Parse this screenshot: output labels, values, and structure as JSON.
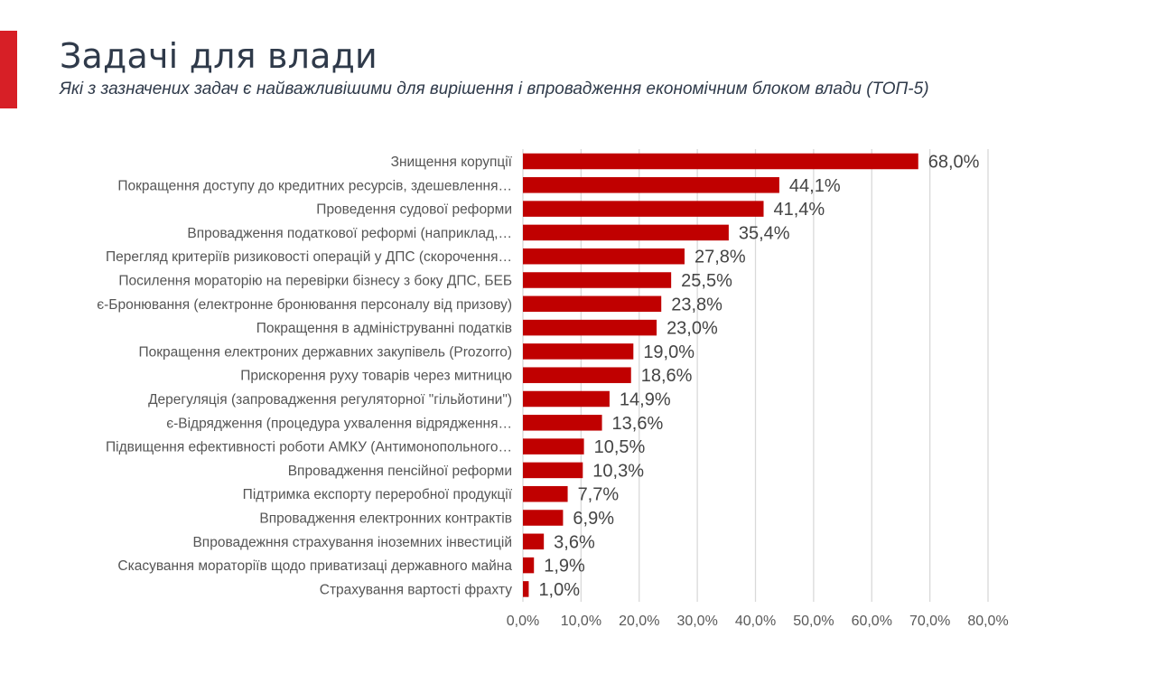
{
  "page": {
    "title": "Задачі для влади",
    "subtitle": "Які з зазначених задач є найважливішими для вирішення і впровадження економічним блоком влади (ТОП-5)"
  },
  "colors": {
    "accent": "#d71f26",
    "bar": "#c00000",
    "grid": "#d9d9d9"
  },
  "chart_data": {
    "type": "bar",
    "orientation": "horizontal",
    "title": "",
    "xlabel": "",
    "ylabel": "",
    "xlim": [
      0,
      80
    ],
    "grid": true,
    "legend": "none",
    "x_ticks": [
      "0,0%",
      "10,0%",
      "20,0%",
      "30,0%",
      "40,0%",
      "50,0%",
      "60,0%",
      "70,0%",
      "80,0%"
    ],
    "categories": [
      "Знищення корупції",
      "Покращення доступу до кредитних ресурсів, здешевлення…",
      "Проведення судової реформи",
      "Впровадження податкової реформі (наприклад,…",
      "Перегляд критеріїв ризиковості операцій у ДПС (скорочення…",
      "Посилення мораторію на перевірки бізнесу з боку ДПС, БЕБ",
      "є-Бронювання (електронне бронювання персоналу від призову)",
      "Покращення в адмініструванні податків",
      "Покращення електроних державних закупівель (Prozorro)",
      "Прискорення руху товарів через митницю",
      "Дерегуляція (запровадження регуляторної \"гільйотини\")",
      "є-Відрядження (процедура ухвалення відрядження…",
      "Підвищення ефективності роботи АМКУ (Антимонопольного…",
      "Впровадження пенсійної реформи",
      "Підтримка експорту переробної продукції",
      "Впровадження електронних контрактів",
      "Впровадежння страхування іноземних інвестицій",
      "Скасування мораторіїв щодо приватизаці державного майна",
      "Страхування вартості фрахту"
    ],
    "values": [
      68.0,
      44.1,
      41.4,
      35.4,
      27.8,
      25.5,
      23.8,
      23.0,
      19.0,
      18.6,
      14.9,
      13.6,
      10.5,
      10.3,
      7.7,
      6.9,
      3.6,
      1.9,
      1.0
    ],
    "value_labels": [
      "68,0%",
      "44,1%",
      "41,4%",
      "35,4%",
      "27,8%",
      "25,5%",
      "23,8%",
      "23,0%",
      "19,0%",
      "18,6%",
      "14,9%",
      "13,6%",
      "10,5%",
      "10,3%",
      "7,7%",
      "6,9%",
      "3,6%",
      "1,9%",
      "1,0%"
    ]
  }
}
